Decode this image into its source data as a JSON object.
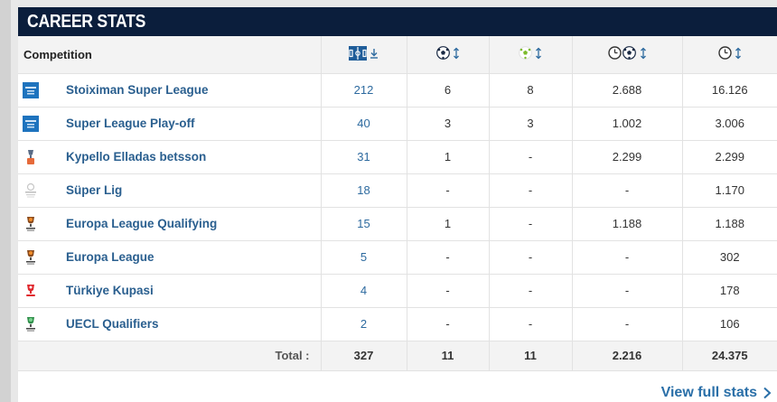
{
  "header": {
    "title": "CAREER STATS"
  },
  "table": {
    "competition_header": "Competition",
    "columns": [
      {
        "key": "appearances",
        "icon": "pitch-icon",
        "sort": "sort-desc-icon"
      },
      {
        "key": "goals",
        "icon": "ball-icon",
        "sort": "sort-both-icon"
      },
      {
        "key": "assists",
        "icon": "assist-ball-icon",
        "sort": "sort-both-icon"
      },
      {
        "key": "minutes_per_goal",
        "icon": "clock-ball-icon",
        "sort": "sort-both-icon"
      },
      {
        "key": "minutes_played",
        "icon": "clock-icon",
        "sort": "sort-both-icon"
      }
    ],
    "rows": [
      {
        "name": "Stoiximan Super League",
        "logo": "super-league-logo",
        "apps": "212",
        "goals": "6",
        "assists": "8",
        "mpg": "2.688",
        "mins": "16.126"
      },
      {
        "name": "Super League Play-off",
        "logo": "super-league-logo",
        "apps": "40",
        "goals": "3",
        "assists": "3",
        "mpg": "1.002",
        "mins": "3.006"
      },
      {
        "name": "Kypello Elladas betsson",
        "logo": "greek-cup-logo",
        "apps": "31",
        "goals": "1",
        "assists": "-",
        "mpg": "2.299",
        "mins": "2.299"
      },
      {
        "name": "Süper Lig",
        "logo": "super-lig-logo",
        "apps": "18",
        "goals": "-",
        "assists": "-",
        "mpg": "-",
        "mins": "1.170"
      },
      {
        "name": "Europa League Qualifying",
        "logo": "europa-league-logo",
        "apps": "15",
        "goals": "1",
        "assists": "-",
        "mpg": "1.188",
        "mins": "1.188"
      },
      {
        "name": "Europa League",
        "logo": "europa-league-logo",
        "apps": "5",
        "goals": "-",
        "assists": "-",
        "mpg": "-",
        "mins": "302"
      },
      {
        "name": "Türkiye Kupasi",
        "logo": "turkiye-kupasi-logo",
        "apps": "4",
        "goals": "-",
        "assists": "-",
        "mpg": "-",
        "mins": "178"
      },
      {
        "name": "UECL Qualifiers",
        "logo": "conference-league-logo",
        "apps": "2",
        "goals": "-",
        "assists": "-",
        "mpg": "-",
        "mins": "106"
      }
    ],
    "total": {
      "label": "Total :",
      "apps": "327",
      "goals": "11",
      "assists": "11",
      "mpg": "2.216",
      "mins": "24.375"
    }
  },
  "footer": {
    "link_label": "View full stats",
    "link_icon": "chevron-right-icon"
  },
  "colors": {
    "header_bg": "#0b1e3c",
    "link": "#2a5f8f",
    "apps_text": "#2d6a9f"
  }
}
